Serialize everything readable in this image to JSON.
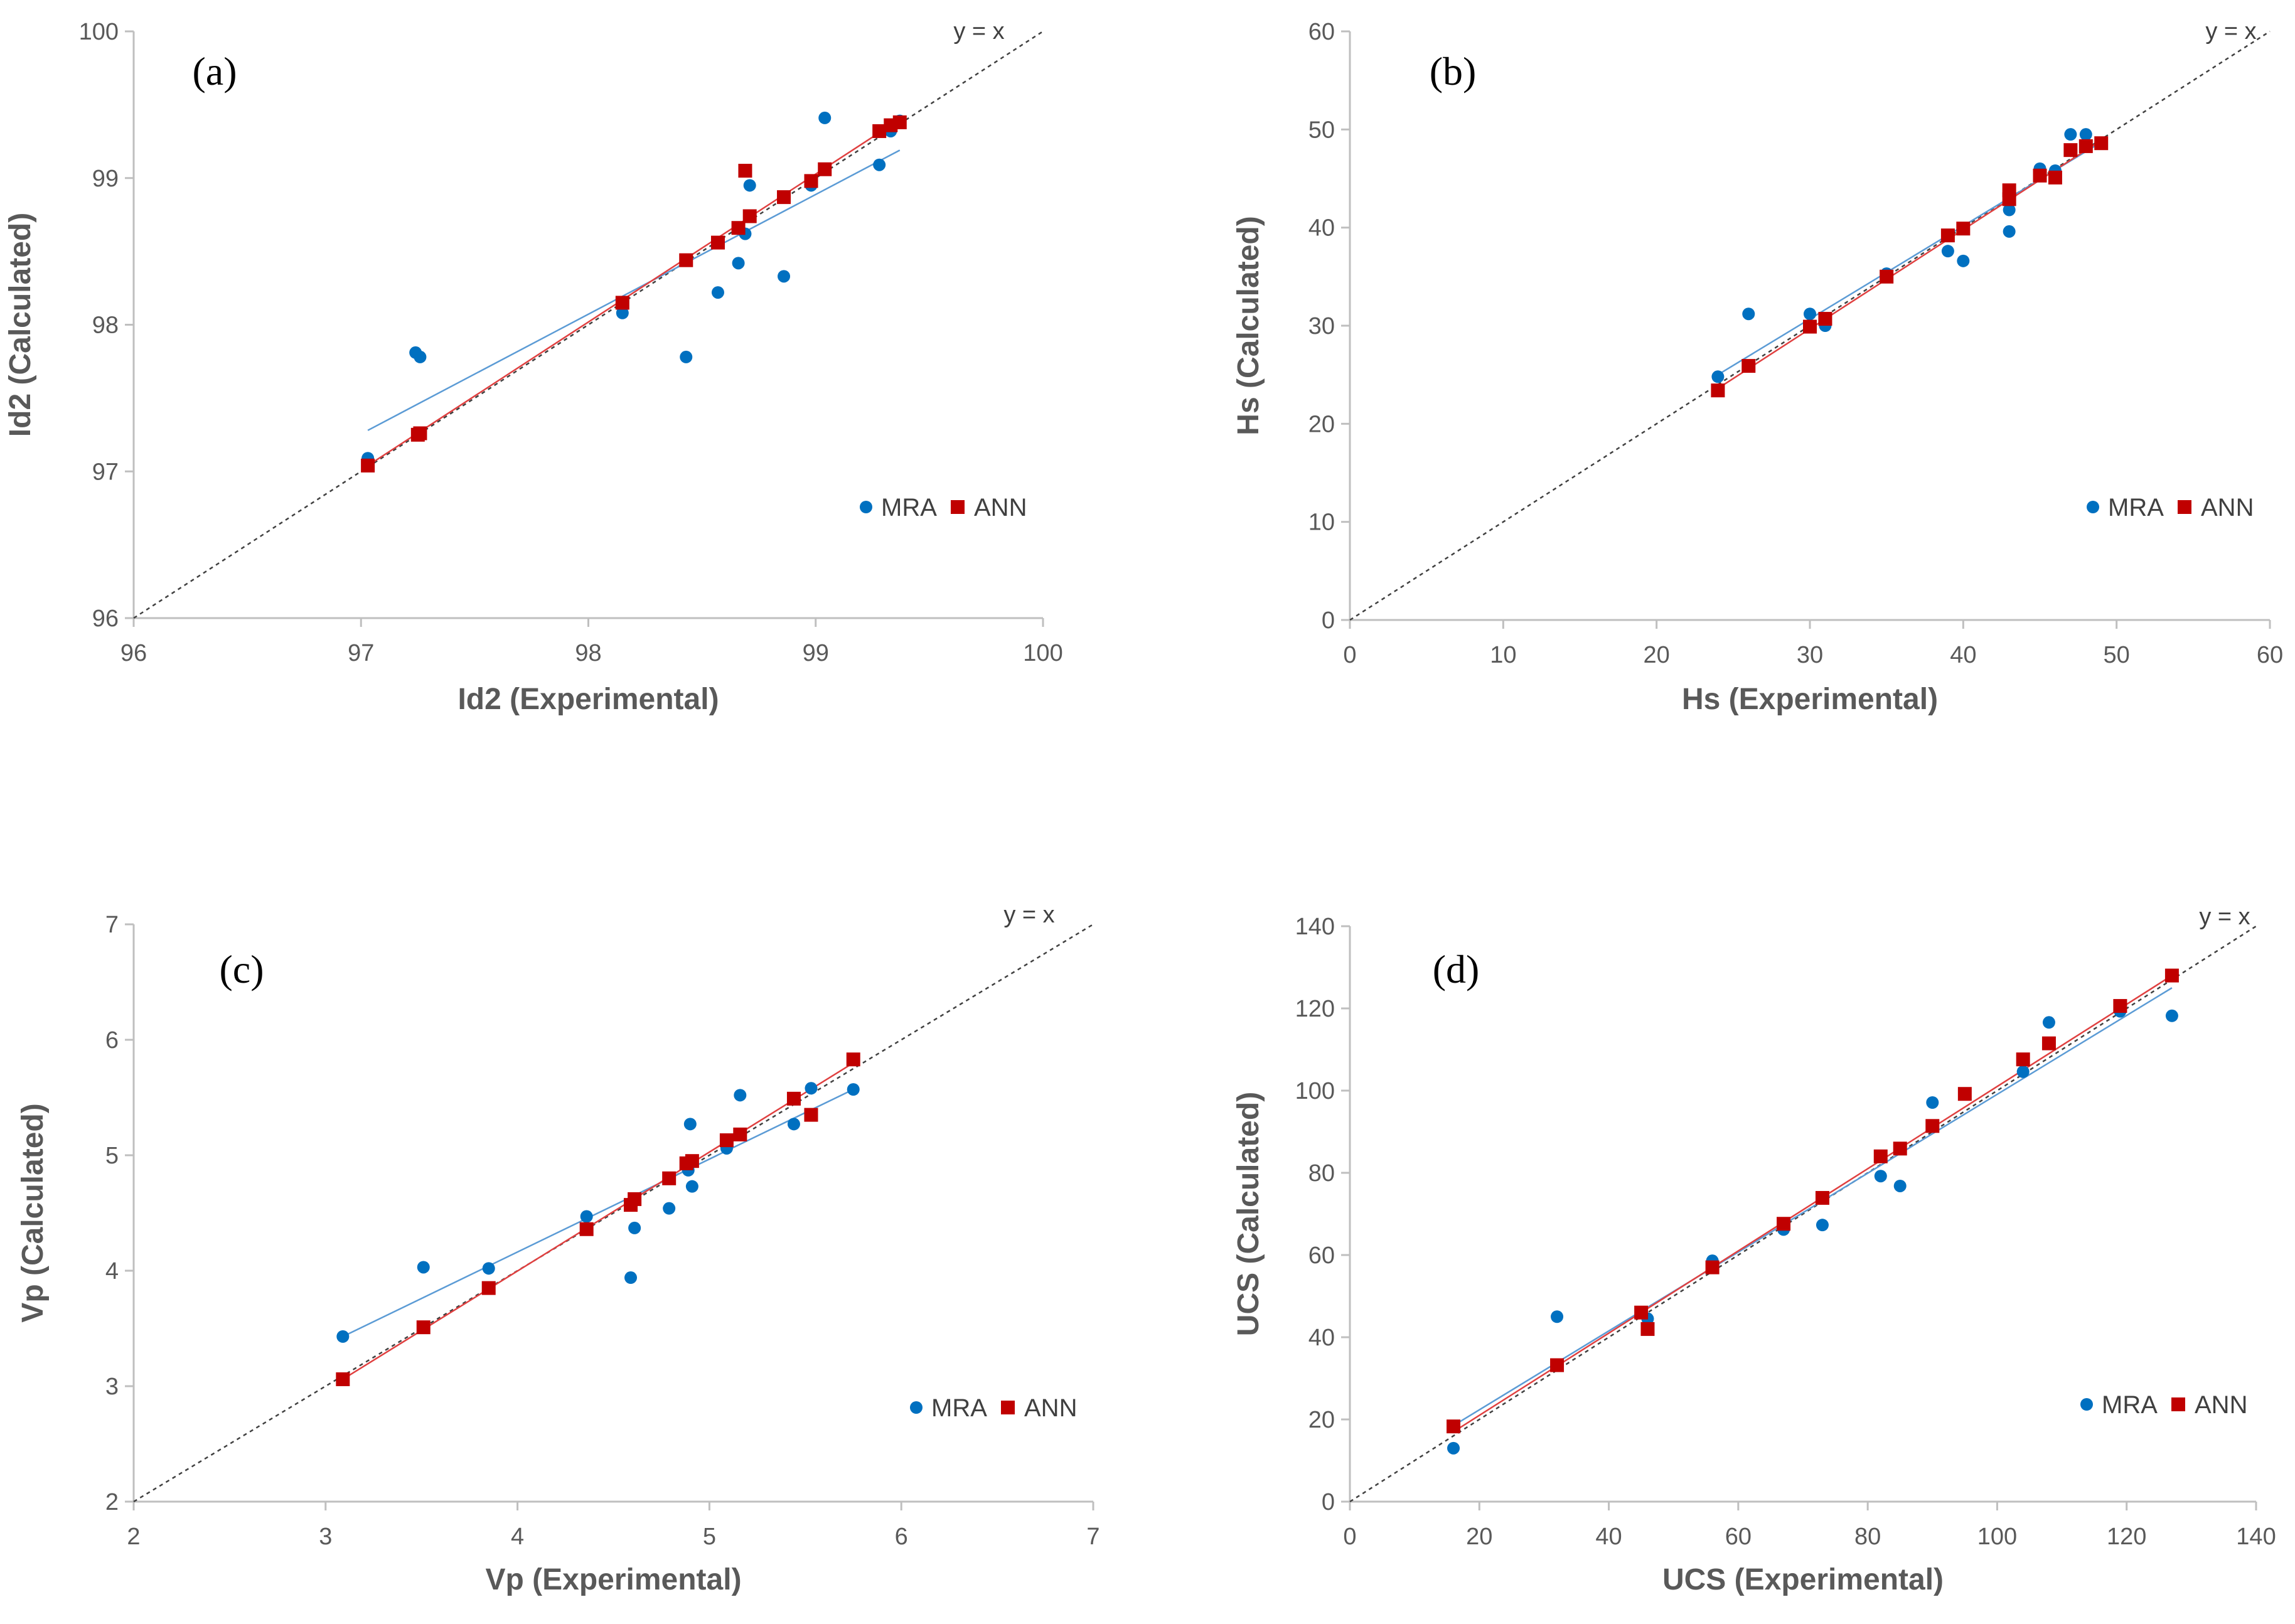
{
  "colors": {
    "mra": "#0070C0",
    "ann": "#C00000",
    "mra_fit": "#5B9BD5",
    "ann_fit": "#E04040",
    "axis": "#BFBFBF",
    "identity": "#404040"
  },
  "chart_data": [
    {
      "type": "scatter",
      "panel_label": "(a)",
      "identity_label": "y = x",
      "xlabel": "Id2 (Experimental)",
      "ylabel": "Id2 (Calculated)",
      "xlim": [
        96,
        100
      ],
      "ylim": [
        96,
        100
      ],
      "xticks": [
        96,
        97,
        98,
        99,
        100
      ],
      "yticks": [
        96,
        97,
        98,
        99,
        100
      ],
      "tick_labels_x": [
        "96",
        "97",
        "98",
        "99",
        "100"
      ],
      "tick_labels_y": [
        "96",
        "97",
        "98",
        "99",
        "100"
      ],
      "legend": [
        "MRA",
        "ANN"
      ],
      "series": [
        {
          "name": "MRA",
          "marker": "circle",
          "x": [
            97.03,
            97.24,
            97.26,
            98.15,
            98.43,
            98.57,
            98.66,
            98.69,
            98.71,
            98.86,
            98.98,
            99.04,
            99.28,
            99.33,
            99.37
          ],
          "y": [
            97.09,
            97.81,
            97.78,
            98.08,
            97.78,
            98.22,
            98.42,
            98.62,
            98.95,
            98.33,
            98.95,
            99.41,
            99.09,
            99.32,
            99.39
          ],
          "fit": {
            "x": [
              97.03,
              99.37
            ],
            "y": [
              97.28,
              99.19
            ]
          }
        },
        {
          "name": "ANN",
          "marker": "square",
          "x": [
            97.03,
            97.25,
            97.26,
            98.15,
            98.43,
            98.57,
            98.66,
            98.69,
            98.71,
            98.86,
            98.98,
            99.04,
            99.28,
            99.33,
            99.37
          ],
          "y": [
            97.04,
            97.25,
            97.26,
            98.15,
            98.44,
            98.56,
            98.66,
            99.05,
            98.74,
            98.87,
            98.98,
            99.06,
            99.32,
            99.36,
            99.38
          ],
          "fit": {
            "x": [
              97.03,
              99.37
            ],
            "y": [
              97.04,
              99.4
            ]
          }
        }
      ]
    },
    {
      "type": "scatter",
      "panel_label": "(b)",
      "identity_label": "y = x",
      "xlabel": "Hs (Experimental)",
      "ylabel": "Hs (Calculated)",
      "xlim": [
        0,
        60
      ],
      "ylim": [
        0,
        60
      ],
      "xticks": [
        0,
        10,
        20,
        30,
        40,
        50,
        60
      ],
      "yticks": [
        0,
        10,
        20,
        30,
        40,
        50,
        60
      ],
      "tick_labels_x": [
        "0",
        "10",
        "20",
        "30",
        "40",
        "50",
        "60"
      ],
      "tick_labels_y": [
        "0",
        "10",
        "20",
        "30",
        "40",
        "50",
        "60"
      ],
      "legend": [
        "MRA",
        "ANN"
      ],
      "series": [
        {
          "name": "MRA",
          "marker": "circle",
          "x": [
            24,
            26,
            30,
            31,
            35,
            39,
            40,
            43,
            43,
            45,
            46,
            47,
            48
          ],
          "y": [
            24.8,
            31.2,
            31.2,
            30.0,
            35.3,
            37.6,
            36.6,
            39.6,
            41.8,
            46.0,
            45.8,
            49.5,
            49.5
          ],
          "fit": {
            "x": [
              24,
              49
            ],
            "y": [
              25.0,
              48.7
            ]
          }
        },
        {
          "name": "ANN",
          "marker": "square",
          "x": [
            24,
            26,
            30,
            31,
            35,
            39,
            40,
            43,
            43,
            45,
            46,
            47,
            48,
            49
          ],
          "y": [
            23.4,
            25.9,
            29.9,
            30.7,
            35.0,
            39.2,
            39.9,
            42.9,
            43.8,
            45.3,
            45.1,
            47.9,
            48.3,
            48.6
          ],
          "fit": {
            "x": [
              24,
              49
            ],
            "y": [
              23.6,
              48.9
            ]
          }
        }
      ]
    },
    {
      "type": "scatter",
      "panel_label": "(c)",
      "identity_label": "y = x",
      "xlabel": "Vp (Experimental)",
      "ylabel": "Vp (Calculated)",
      "xlim": [
        2,
        7
      ],
      "ylim": [
        2,
        7
      ],
      "xticks": [
        2,
        3,
        4,
        5,
        6,
        7
      ],
      "yticks": [
        2,
        3,
        4,
        5,
        6,
        7
      ],
      "tick_labels_x": [
        "2",
        "3",
        "4",
        "5",
        "6",
        "7"
      ],
      "tick_labels_y": [
        "2",
        "3",
        "4",
        "5",
        "6",
        "7"
      ],
      "legend": [
        "MRA",
        "ANN"
      ],
      "series": [
        {
          "name": "MRA",
          "marker": "circle",
          "x": [
            3.09,
            3.51,
            3.85,
            4.36,
            4.59,
            4.61,
            4.79,
            4.89,
            4.9,
            4.91,
            5.09,
            5.16,
            5.44,
            5.53,
            5.75
          ],
          "y": [
            3.43,
            4.03,
            4.02,
            4.47,
            3.94,
            4.37,
            4.54,
            4.87,
            5.27,
            4.73,
            5.06,
            5.52,
            5.27,
            5.58,
            5.57
          ],
          "fit": {
            "x": [
              3.09,
              5.75
            ],
            "y": [
              3.43,
              5.57
            ]
          }
        },
        {
          "name": "ANN",
          "marker": "square",
          "x": [
            3.09,
            3.51,
            3.85,
            4.36,
            4.59,
            4.61,
            4.79,
            4.88,
            4.91,
            5.09,
            5.16,
            5.44,
            5.53,
            5.75
          ],
          "y": [
            3.06,
            3.51,
            3.85,
            4.36,
            4.57,
            4.62,
            4.8,
            4.93,
            4.95,
            5.13,
            5.18,
            5.49,
            5.35,
            5.83
          ],
          "fit": {
            "x": [
              3.09,
              5.75
            ],
            "y": [
              3.06,
              5.8
            ]
          }
        }
      ]
    },
    {
      "type": "scatter",
      "panel_label": "(d)",
      "identity_label": "y = x",
      "xlabel": "UCS (Experimental)",
      "ylabel": "UCS (Calculated)",
      "xlim": [
        0,
        140
      ],
      "ylim": [
        0,
        140
      ],
      "xticks": [
        0,
        20,
        40,
        60,
        80,
        100,
        120,
        140
      ],
      "yticks": [
        0,
        20,
        40,
        60,
        80,
        100,
        120,
        140
      ],
      "tick_labels_x": [
        "0",
        "20",
        "40",
        "60",
        "80",
        "100",
        "120",
        "140"
      ],
      "tick_labels_y": [
        "0",
        "20",
        "40",
        "60",
        "80",
        "100",
        "120",
        "140"
      ],
      "legend": [
        "MRA",
        "ANN"
      ],
      "series": [
        {
          "name": "MRA",
          "marker": "circle",
          "x": [
            16,
            32,
            46,
            56,
            67,
            73,
            82,
            85,
            90,
            104,
            108,
            119,
            127
          ],
          "y": [
            13,
            45,
            44.5,
            58.6,
            66.2,
            67.3,
            79.2,
            76.8,
            97.1,
            104.6,
            116.6,
            119.3,
            118.2
          ],
          "fit": {
            "x": [
              16,
              127
            ],
            "y": [
              18.5,
              125
            ]
          }
        },
        {
          "name": "ANN",
          "marker": "square",
          "x": [
            16,
            32,
            45,
            46,
            56,
            67,
            73,
            82,
            85,
            90,
            95,
            104,
            108,
            119,
            127
          ],
          "y": [
            18.3,
            33.2,
            46,
            42,
            57,
            67.6,
            73.9,
            84,
            85.9,
            91.4,
            99.2,
            107.6,
            111.5,
            120.6,
            128
          ],
          "fit": {
            "x": [
              16,
              127
            ],
            "y": [
              17,
              128
            ]
          }
        }
      ]
    }
  ]
}
